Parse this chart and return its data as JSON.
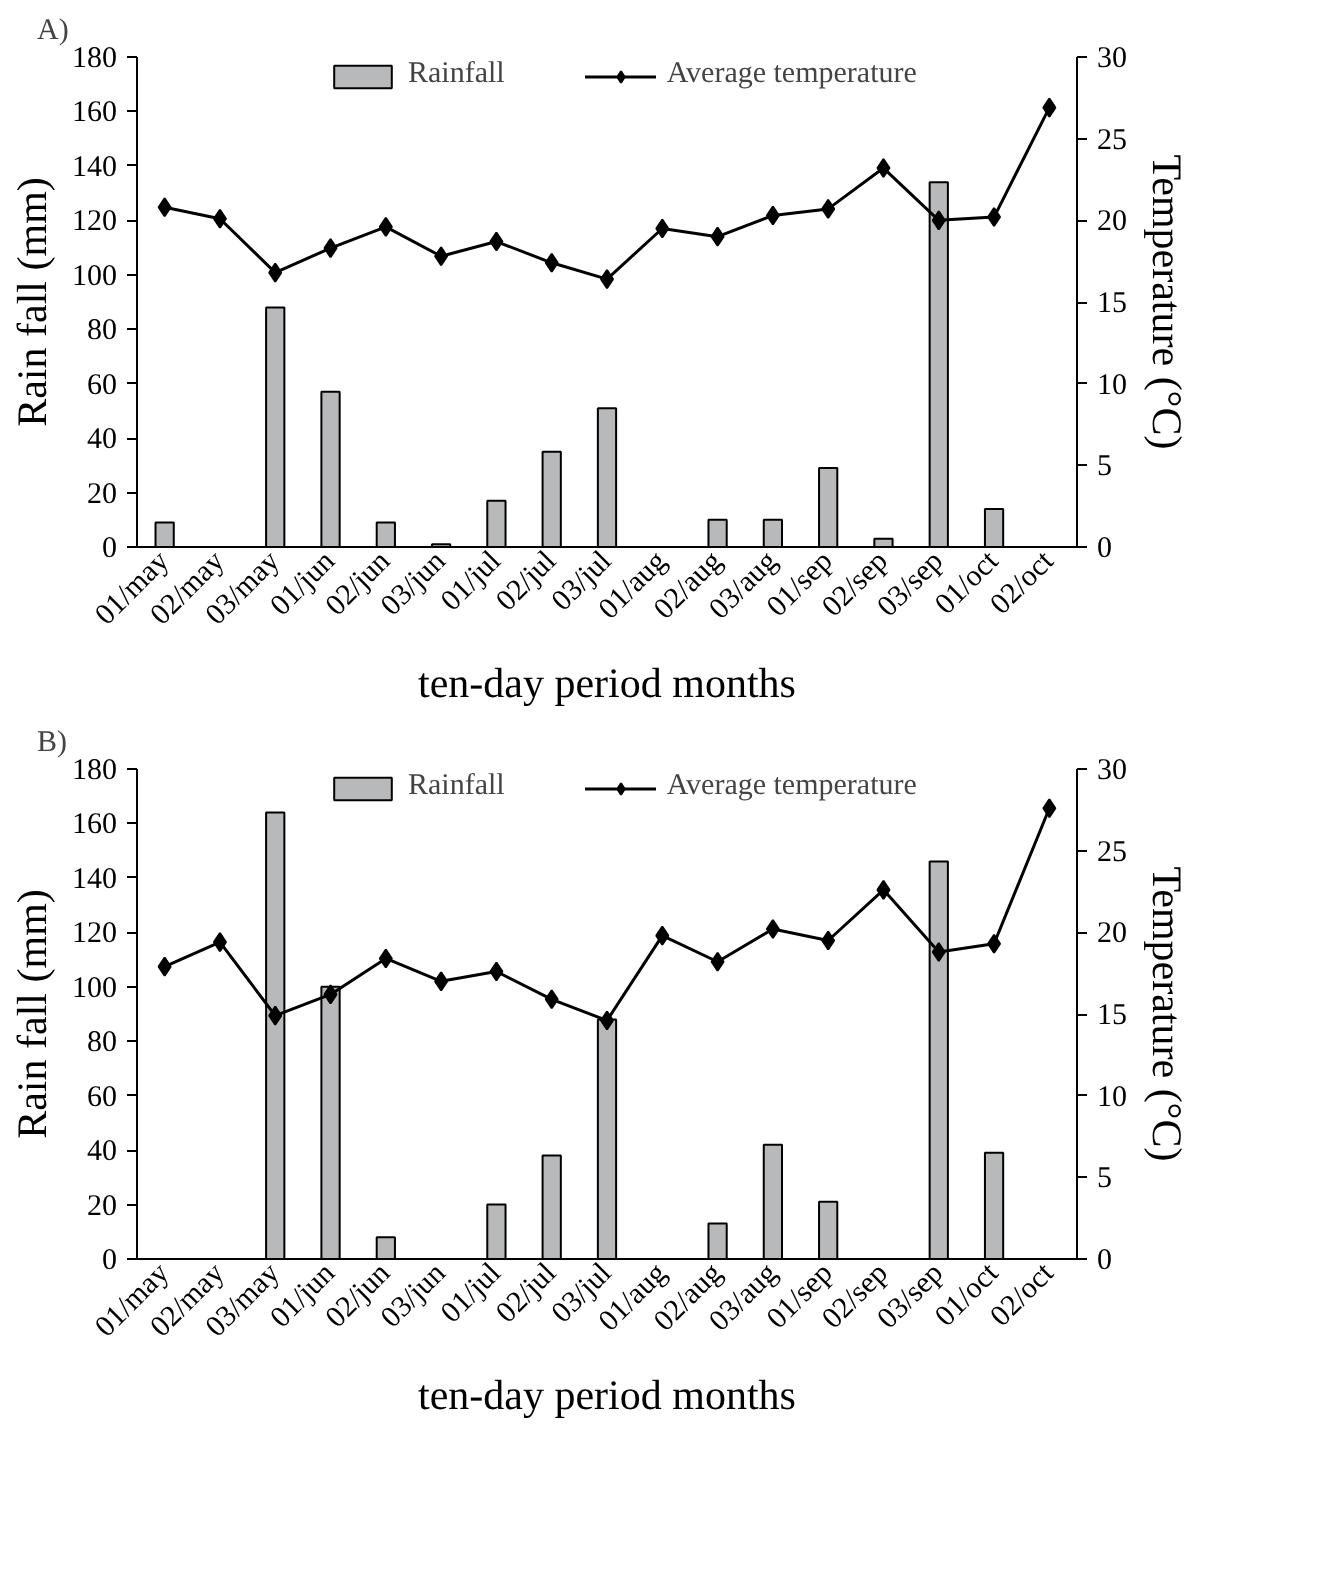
{
  "chart_data": [
    {
      "type": "bar",
      "annotations": [
        "A)"
      ],
      "xlabel": "ten-day period months",
      "ylabel": "Rain fall (mm)",
      "y2label": "Temperature (°C)",
      "categories": [
        "01/may",
        "02/may",
        "03/may",
        "01/jun",
        "02/jun",
        "03/jun",
        "01/jul",
        "02/jul",
        "03/jul",
        "01/aug",
        "02/aug",
        "03/aug",
        "01/sep",
        "02/sep",
        "03/sep",
        "01/oct",
        "02/oct"
      ],
      "series": [
        {
          "name": "Rainfall",
          "color": "#b7b9bb",
          "values": [
            9,
            null,
            88,
            57,
            9,
            1,
            17,
            35,
            51,
            null,
            10,
            10,
            29,
            3,
            134,
            14,
            null
          ]
        },
        {
          "name": "Average temperature",
          "type": "line",
          "axis": "y2",
          "color": "#000000",
          "values": [
            20.8,
            20.1,
            16.8,
            18.3,
            19.6,
            17.8,
            18.7,
            17.4,
            16.4,
            19.5,
            19.0,
            20.3,
            20.7,
            23.2,
            20.0,
            20.2,
            26.9
          ]
        }
      ],
      "ylim": [
        0,
        180
      ],
      "yticks": [
        0,
        20,
        40,
        60,
        80,
        100,
        120,
        140,
        160,
        180
      ],
      "y2lim": [
        0,
        30
      ],
      "y2ticks": [
        0,
        5,
        10,
        15,
        20,
        25,
        30
      ],
      "grid": false,
      "legend": "top",
      "marker": "diamond"
    },
    {
      "type": "bar",
      "annotations": [
        "B)"
      ],
      "xlabel": "ten-day period months",
      "ylabel": "Rain fall (mm)",
      "y2label": "Temperature (°C)",
      "categories": [
        "01/may",
        "02/may",
        "03/may",
        "01/jun",
        "02/jun",
        "03/jun",
        "01/jul",
        "02/jul",
        "03/jul",
        "01/aug",
        "02/aug",
        "03/aug",
        "01/sep",
        "02/sep",
        "03/sep",
        "01/oct",
        "02/oct"
      ],
      "series": [
        {
          "name": "Rainfall",
          "color": "#b7b9bb",
          "values": [
            null,
            null,
            164,
            100,
            8,
            null,
            20,
            38,
            88,
            null,
            13,
            42,
            21,
            null,
            146,
            39,
            null
          ]
        },
        {
          "name": "Average temperature",
          "type": "line",
          "axis": "y2",
          "color": "#000000",
          "values": [
            17.9,
            19.4,
            14.9,
            16.2,
            18.4,
            17.0,
            17.6,
            15.9,
            14.6,
            19.8,
            18.2,
            20.2,
            19.5,
            22.6,
            18.8,
            19.3,
            27.6
          ]
        }
      ],
      "ylim": [
        0,
        180
      ],
      "yticks": [
        0,
        20,
        40,
        60,
        80,
        100,
        120,
        140,
        160,
        180
      ],
      "y2lim": [
        0,
        30
      ],
      "y2ticks": [
        0,
        5,
        10,
        15,
        20,
        25,
        30
      ],
      "grid": false,
      "legend": "top",
      "marker": "diamond"
    }
  ]
}
